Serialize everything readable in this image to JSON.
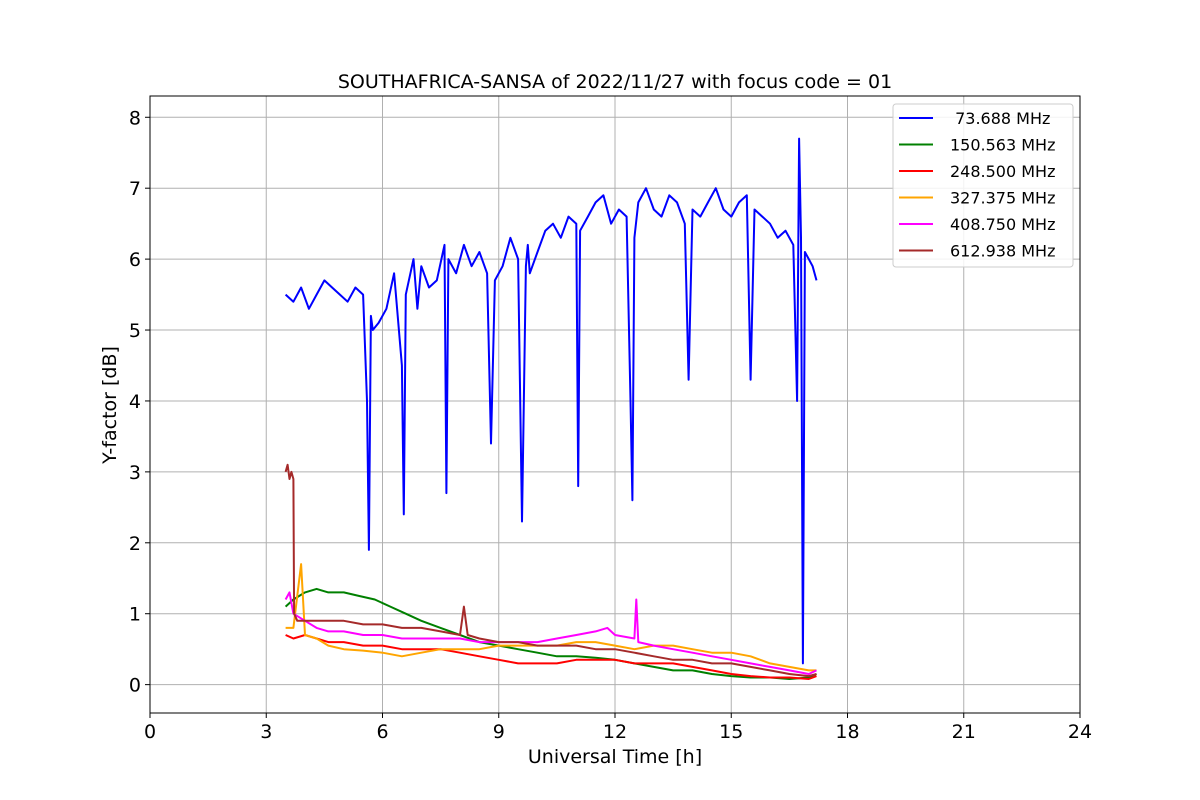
{
  "chart_data": {
    "type": "line",
    "title": "SOUTHAFRICA-SANSA of 2022/11/27 with focus code = 01",
    "xlabel": "Universal Time [h]",
    "ylabel": "Y-factor [dB]",
    "xlim": [
      0,
      24
    ],
    "ylim": [
      -0.4,
      8.3
    ],
    "xticks": [
      0,
      3,
      6,
      9,
      12,
      15,
      18,
      21,
      24
    ],
    "yticks": [
      0,
      1,
      2,
      3,
      4,
      5,
      6,
      7,
      8
    ],
    "grid": true,
    "legend_position": "top-right",
    "series": [
      {
        "name": " 73.688 MHz",
        "color": "#0000ff",
        "x": [
          3.5,
          3.7,
          3.9,
          4.1,
          4.3,
          4.5,
          4.7,
          4.9,
          5.1,
          5.3,
          5.5,
          5.6,
          5.65,
          5.7,
          5.75,
          5.9,
          6.1,
          6.3,
          6.5,
          6.55,
          6.6,
          6.8,
          6.9,
          7.0,
          7.2,
          7.4,
          7.6,
          7.65,
          7.7,
          7.9,
          8.1,
          8.3,
          8.5,
          8.7,
          8.8,
          8.9,
          9.1,
          9.3,
          9.5,
          9.6,
          9.7,
          9.75,
          9.8,
          10.0,
          10.2,
          10.4,
          10.6,
          10.8,
          11.0,
          11.05,
          11.1,
          11.3,
          11.5,
          11.7,
          11.9,
          12.1,
          12.3,
          12.4,
          12.45,
          12.5,
          12.6,
          12.8,
          13.0,
          13.2,
          13.4,
          13.6,
          13.8,
          13.9,
          14.0,
          14.2,
          14.4,
          14.6,
          14.8,
          15.0,
          15.2,
          15.4,
          15.5,
          15.6,
          15.8,
          16.0,
          16.2,
          16.4,
          16.6,
          16.7,
          16.75,
          16.8,
          16.85,
          16.9,
          17.0,
          17.1,
          17.2
        ],
        "values": [
          5.5,
          5.4,
          5.6,
          5.3,
          5.5,
          5.7,
          5.6,
          5.5,
          5.4,
          5.6,
          5.5,
          4.0,
          1.9,
          5.2,
          5.0,
          5.1,
          5.3,
          5.8,
          4.5,
          2.4,
          5.5,
          6.0,
          5.3,
          5.9,
          5.6,
          5.7,
          6.2,
          2.7,
          6.0,
          5.8,
          6.2,
          5.9,
          6.1,
          5.8,
          3.4,
          5.7,
          5.9,
          6.3,
          6.0,
          2.3,
          5.9,
          6.2,
          5.8,
          6.1,
          6.4,
          6.5,
          6.3,
          6.6,
          6.5,
          2.8,
          6.4,
          6.6,
          6.8,
          6.9,
          6.5,
          6.7,
          6.6,
          4.0,
          2.6,
          6.3,
          6.8,
          7.0,
          6.7,
          6.6,
          6.9,
          6.8,
          6.5,
          4.3,
          6.7,
          6.6,
          6.8,
          7.0,
          6.7,
          6.6,
          6.8,
          6.9,
          4.3,
          6.7,
          6.6,
          6.5,
          6.3,
          6.4,
          6.2,
          4.0,
          7.7,
          6.3,
          0.3,
          6.1,
          6.0,
          5.9,
          5.7
        ]
      },
      {
        "name": "150.563 MHz",
        "color": "#008000",
        "x": [
          3.5,
          3.7,
          4.0,
          4.3,
          4.6,
          5.0,
          5.4,
          5.8,
          6.2,
          6.6,
          7.0,
          7.5,
          8.0,
          8.5,
          9.0,
          9.5,
          10.0,
          10.5,
          11.0,
          11.5,
          12.0,
          12.5,
          13.0,
          13.5,
          14.0,
          14.5,
          15.0,
          15.5,
          16.0,
          16.5,
          17.0,
          17.2
        ],
        "values": [
          1.1,
          1.2,
          1.3,
          1.35,
          1.3,
          1.3,
          1.25,
          1.2,
          1.1,
          1.0,
          0.9,
          0.8,
          0.7,
          0.6,
          0.55,
          0.5,
          0.45,
          0.4,
          0.4,
          0.38,
          0.35,
          0.3,
          0.25,
          0.2,
          0.2,
          0.15,
          0.12,
          0.1,
          0.1,
          0.08,
          0.1,
          0.15
        ]
      },
      {
        "name": "248.500 MHz",
        "color": "#ff0000",
        "x": [
          3.5,
          3.7,
          4.0,
          4.3,
          4.6,
          5.0,
          5.5,
          6.0,
          6.5,
          7.0,
          7.5,
          8.0,
          8.5,
          9.0,
          9.5,
          10.0,
          10.5,
          11.0,
          11.5,
          12.0,
          12.5,
          13.0,
          13.5,
          14.0,
          14.5,
          15.0,
          15.5,
          16.0,
          16.5,
          17.0,
          17.2
        ],
        "values": [
          0.7,
          0.65,
          0.7,
          0.65,
          0.6,
          0.6,
          0.55,
          0.55,
          0.5,
          0.5,
          0.5,
          0.45,
          0.4,
          0.35,
          0.3,
          0.3,
          0.3,
          0.35,
          0.35,
          0.35,
          0.3,
          0.3,
          0.3,
          0.25,
          0.2,
          0.15,
          0.12,
          0.1,
          0.1,
          0.08,
          0.12
        ]
      },
      {
        "name": "327.375 MHz",
        "color": "#ffa500",
        "x": [
          3.5,
          3.7,
          3.9,
          4.0,
          4.3,
          4.6,
          5.0,
          5.5,
          6.0,
          6.5,
          7.0,
          7.5,
          8.0,
          8.5,
          9.0,
          9.5,
          10.0,
          10.5,
          11.0,
          11.5,
          12.0,
          12.5,
          13.0,
          13.5,
          14.0,
          14.5,
          15.0,
          15.5,
          16.0,
          16.5,
          17.0,
          17.2
        ],
        "values": [
          0.8,
          0.8,
          1.7,
          0.7,
          0.65,
          0.55,
          0.5,
          0.48,
          0.45,
          0.4,
          0.45,
          0.5,
          0.5,
          0.5,
          0.55,
          0.55,
          0.55,
          0.55,
          0.6,
          0.6,
          0.55,
          0.5,
          0.55,
          0.55,
          0.5,
          0.45,
          0.45,
          0.4,
          0.3,
          0.25,
          0.2,
          0.2
        ]
      },
      {
        "name": "408.750 MHz",
        "color": "#ff00ff",
        "x": [
          3.5,
          3.6,
          3.7,
          4.0,
          4.3,
          4.6,
          5.0,
          5.5,
          6.0,
          6.5,
          7.0,
          7.5,
          8.0,
          8.5,
          9.0,
          9.5,
          10.0,
          10.5,
          11.0,
          11.5,
          11.8,
          12.0,
          12.5,
          12.55,
          12.6,
          13.0,
          13.5,
          14.0,
          14.5,
          15.0,
          15.5,
          16.0,
          16.5,
          17.0,
          17.2
        ],
        "values": [
          1.2,
          1.3,
          1.0,
          0.9,
          0.8,
          0.75,
          0.75,
          0.7,
          0.7,
          0.65,
          0.65,
          0.65,
          0.65,
          0.6,
          0.6,
          0.6,
          0.6,
          0.65,
          0.7,
          0.75,
          0.8,
          0.7,
          0.65,
          1.2,
          0.6,
          0.55,
          0.5,
          0.45,
          0.4,
          0.35,
          0.3,
          0.25,
          0.2,
          0.15,
          0.2
        ]
      },
      {
        "name": "612.938 MHz",
        "color": "#a52a2a",
        "x": [
          3.5,
          3.55,
          3.6,
          3.65,
          3.7,
          3.72,
          3.8,
          4.0,
          4.3,
          4.6,
          5.0,
          5.5,
          6.0,
          6.5,
          7.0,
          7.5,
          8.0,
          8.1,
          8.2,
          8.5,
          9.0,
          9.5,
          10.0,
          10.5,
          11.0,
          11.5,
          12.0,
          12.5,
          13.0,
          13.5,
          14.0,
          14.5,
          15.0,
          15.5,
          16.0,
          16.5,
          17.0,
          17.2
        ],
        "values": [
          3.0,
          3.1,
          2.9,
          3.0,
          2.9,
          1.0,
          0.9,
          0.9,
          0.9,
          0.9,
          0.9,
          0.85,
          0.85,
          0.8,
          0.8,
          0.75,
          0.7,
          1.1,
          0.7,
          0.65,
          0.6,
          0.6,
          0.55,
          0.55,
          0.55,
          0.5,
          0.5,
          0.45,
          0.4,
          0.35,
          0.35,
          0.3,
          0.3,
          0.25,
          0.2,
          0.15,
          0.12,
          0.15
        ]
      }
    ]
  }
}
